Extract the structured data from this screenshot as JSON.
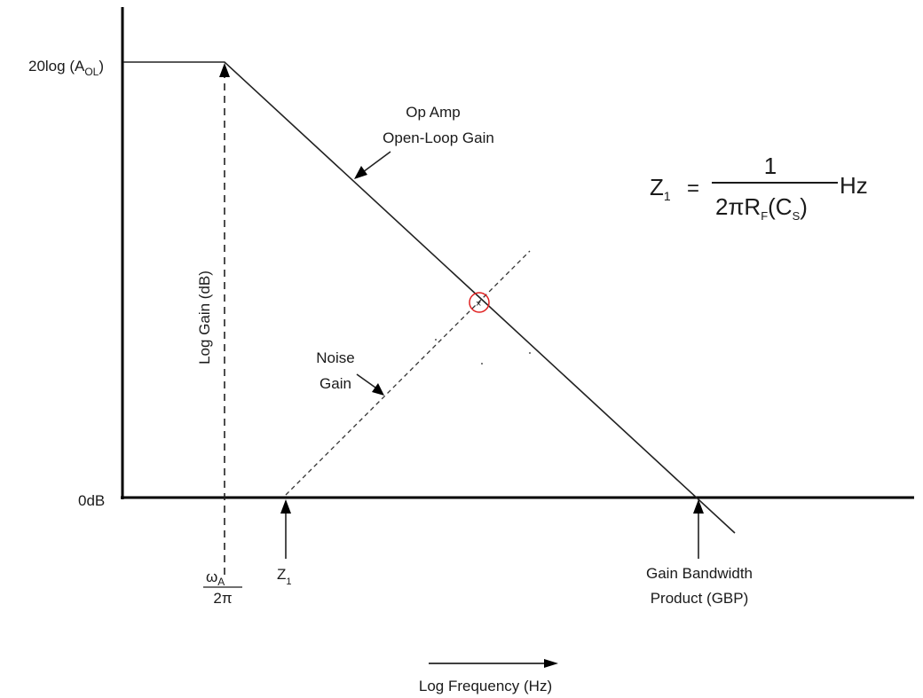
{
  "y_axis": {
    "title": "Log Gain (dB)",
    "top_label_main": "20log (A",
    "top_label_sub": "OL",
    "top_label_close": ")",
    "zero_label": "0dB"
  },
  "x_axis": {
    "title": "Log Frequency (Hz)",
    "omega_label_num": "ω",
    "omega_label_sub": "A",
    "omega_label_den": "2π",
    "z1_label": "Z",
    "z1_sub": "1",
    "gbp_label_line1": "Gain Bandwidth",
    "gbp_label_line2": "Product (GBP)"
  },
  "curves": {
    "open_loop_line1": "Op Amp",
    "open_loop_line2": "Open-Loop Gain",
    "noise_line1": "Noise",
    "noise_line2": "Gain"
  },
  "formula": {
    "lhs": "Z",
    "lhs_sub": "1",
    "equals": "=",
    "numerator": "1",
    "den_a": "2πR",
    "den_sub_f": "F",
    "den_b": "(C",
    "den_sub_s": "S",
    "den_c": ")",
    "unit": "Hz"
  },
  "colors": {
    "intersection_marker": "#e02020"
  }
}
